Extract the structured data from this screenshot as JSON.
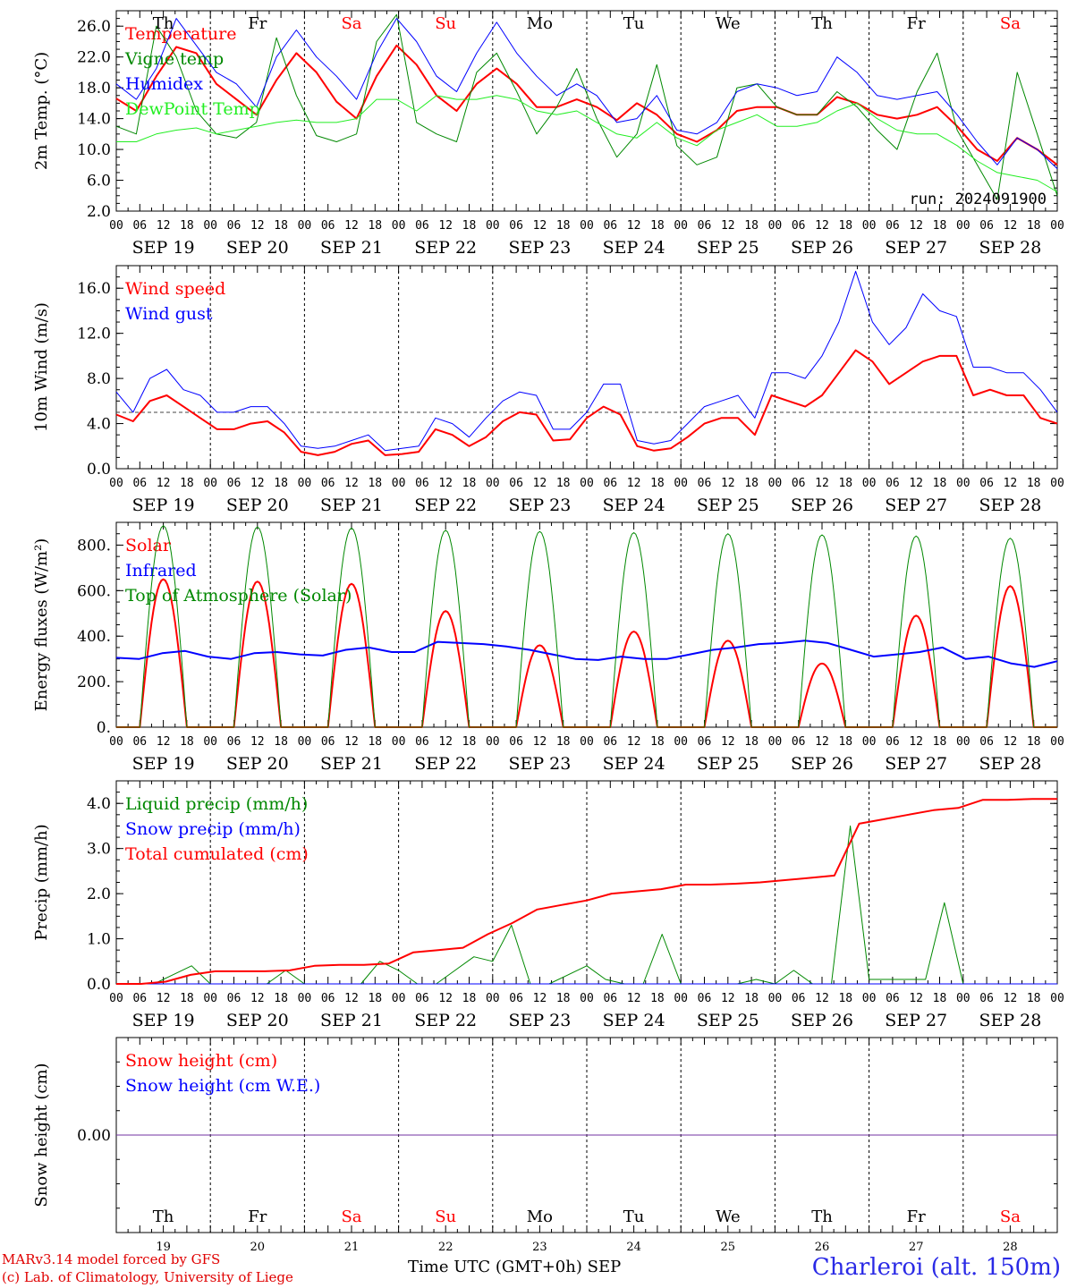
{
  "days": [
    {
      "abbr": "Th",
      "date": "19",
      "weekend": false
    },
    {
      "abbr": "Fr",
      "date": "20",
      "weekend": false
    },
    {
      "abbr": "Sa",
      "date": "21",
      "weekend": true
    },
    {
      "abbr": "Su",
      "date": "22",
      "weekend": true
    },
    {
      "abbr": "Mo",
      "date": "23",
      "weekend": false
    },
    {
      "abbr": "Tu",
      "date": "24",
      "weekend": false
    },
    {
      "abbr": "We",
      "date": "25",
      "weekend": false
    },
    {
      "abbr": "Th",
      "date": "26",
      "weekend": false
    },
    {
      "abbr": "Fr",
      "date": "27",
      "weekend": false
    },
    {
      "abbr": "Sa",
      "date": "28",
      "weekend": true
    }
  ],
  "month": "SEP",
  "hour_ticks": [
    "00",
    "06",
    "12",
    "18"
  ],
  "footer": {
    "model": "MARv3.14 model forced by GFS",
    "lab": "(c) Lab. of Climatology, University of Liege",
    "time_axis": "Time UTC (GMT+0h)",
    "month_label": "SEP",
    "station": "Charleroi (alt. 150m)"
  },
  "colors": {
    "red": "#ff0000",
    "green": "#008800",
    "blue": "#0000ff",
    "lightgreen": "#22ee22",
    "purple": "#7030a0",
    "weekend": "#ff0000"
  },
  "chart_data": [
    {
      "type": "line",
      "ylabel": "2m Temp. (°C)",
      "ylim": [
        2,
        28
      ],
      "yticks": [
        2.0,
        6.0,
        10.0,
        14.0,
        18.0,
        22.0,
        26.0
      ],
      "tick_decimals": 1,
      "run_label": "run: 2024091900",
      "x_hours_step": 6,
      "series": [
        {
          "name": "Temperature",
          "color": "#ff0000",
          "width": 2,
          "values": [
            16.6,
            15.0,
            19.5,
            23.3,
            22.5,
            18.5,
            16.5,
            14.5,
            19.0,
            22.5,
            20.0,
            16.2,
            14.0,
            19.5,
            23.5,
            21.0,
            17.0,
            15.0,
            18.5,
            20.5,
            18.5,
            15.5,
            15.5,
            16.5,
            15.5,
            13.8,
            16.0,
            14.5,
            12.0,
            11.0,
            12.5,
            15.0,
            15.5,
            15.5,
            14.5,
            14.5,
            16.8,
            16.0,
            14.5,
            14.0,
            14.5,
            15.5,
            13.0,
            10.0,
            8.5,
            11.5,
            10.0,
            8.0
          ]
        },
        {
          "name": "Vigne temp",
          "color": "#008800",
          "width": 1,
          "values": [
            13.0,
            12.0,
            26.0,
            22.0,
            15.0,
            12.0,
            11.5,
            13.5,
            24.5,
            17.0,
            11.8,
            11.0,
            12.0,
            24.0,
            27.5,
            13.5,
            12.0,
            11.0,
            20.0,
            22.5,
            17.5,
            12.0,
            15.5,
            20.5,
            14.0,
            9.0,
            12.0,
            21.0,
            10.5,
            8.0,
            9.0,
            18.0,
            18.5,
            15.5,
            14.5,
            14.5,
            17.5,
            15.5,
            12.5,
            10.0,
            17.5,
            22.5,
            12.5,
            8.0,
            3.5,
            20.0,
            12.0,
            4.0
          ]
        },
        {
          "name": "Humidex",
          "color": "#0000ff",
          "width": 1,
          "values": [
            18.5,
            16.5,
            20.5,
            27.0,
            23.5,
            20.0,
            18.5,
            15.5,
            22.0,
            25.5,
            22.0,
            19.5,
            16.5,
            22.5,
            27.0,
            24.0,
            19.5,
            17.5,
            22.5,
            26.5,
            22.5,
            19.5,
            17.0,
            18.5,
            17.0,
            13.5,
            14.0,
            17.0,
            12.5,
            12.0,
            13.5,
            17.5,
            18.5,
            18.0,
            17.0,
            17.5,
            22.0,
            20.0,
            17.0,
            16.5,
            17.0,
            17.5,
            14.5,
            11.0,
            8.0,
            11.5,
            10.0,
            7.5
          ]
        },
        {
          "name": "DewPoint Temp",
          "color": "#22ee22",
          "width": 1,
          "values": [
            11.0,
            11.0,
            12.0,
            12.5,
            12.8,
            12.0,
            12.5,
            13.0,
            13.5,
            13.8,
            13.5,
            13.5,
            14.0,
            16.5,
            16.5,
            15.0,
            17.0,
            16.5,
            16.5,
            17.0,
            16.5,
            15.0,
            14.5,
            15.0,
            13.5,
            12.0,
            11.5,
            13.5,
            11.5,
            10.5,
            12.5,
            13.5,
            14.5,
            13.0,
            13.0,
            13.5,
            15.0,
            16.0,
            14.0,
            12.5,
            12.0,
            12.0,
            10.5,
            8.5,
            7.0,
            6.5,
            6.0,
            4.5
          ]
        }
      ],
      "day_labels_on_top": true
    },
    {
      "type": "line",
      "ylabel": "10m Wind (m/s)",
      "ylim": [
        0,
        18
      ],
      "yticks": [
        0.0,
        4.0,
        8.0,
        12.0,
        16.0
      ],
      "tick_decimals": 1,
      "reference_line": 5.0,
      "x_hours_step": 6,
      "series": [
        {
          "name": "Wind speed",
          "color": "#ff0000",
          "width": 2,
          "values": [
            4.8,
            4.2,
            6.0,
            6.5,
            5.5,
            4.5,
            3.5,
            3.5,
            4.0,
            4.2,
            3.2,
            1.5,
            1.2,
            1.5,
            2.2,
            2.5,
            1.2,
            1.3,
            1.5,
            3.5,
            3.0,
            2.0,
            2.8,
            4.2,
            5.0,
            4.8,
            2.5,
            2.6,
            4.5,
            5.5,
            4.8,
            2.0,
            1.6,
            1.8,
            2.8,
            4.0,
            4.5,
            4.5,
            3.0,
            6.5,
            6.0,
            5.5,
            6.5,
            8.5,
            10.5,
            9.5,
            7.5,
            8.5,
            9.5,
            10.0,
            10.0,
            6.5,
            7.0,
            6.5,
            6.5,
            4.5,
            4.0
          ]
        },
        {
          "name": "Wind gust",
          "color": "#0000ff",
          "width": 1,
          "values": [
            6.8,
            5.0,
            8.0,
            8.8,
            7.0,
            6.5,
            5.0,
            5.0,
            5.5,
            5.5,
            4.0,
            2.0,
            1.8,
            2.0,
            2.5,
            3.0,
            1.6,
            1.8,
            2.0,
            4.5,
            4.0,
            2.8,
            4.5,
            6.0,
            6.8,
            6.5,
            3.5,
            3.5,
            5.0,
            7.5,
            7.5,
            2.5,
            2.2,
            2.5,
            4.0,
            5.5,
            6.0,
            6.5,
            4.5,
            8.5,
            8.5,
            8.0,
            10.0,
            13.0,
            17.5,
            13.0,
            11.0,
            12.5,
            15.5,
            14.0,
            13.5,
            9.0,
            9.0,
            8.5,
            8.5,
            7.0,
            5.0
          ]
        }
      ],
      "day_labels_on_top": false
    },
    {
      "type": "line",
      "ylabel": "Energy fluxes (W/m²)",
      "ylim": [
        0,
        900
      ],
      "yticks": [
        0,
        200,
        400,
        600,
        800
      ],
      "tick_labels": [
        "0.",
        "200.",
        "400.",
        "600.",
        "800."
      ],
      "x_hours_step": 6,
      "series": [
        {
          "name": "Solar",
          "color": "#ff0000",
          "width": 2,
          "kind": "diurnal",
          "peaks": [
            650,
            640,
            630,
            510,
            360,
            420,
            380,
            280,
            490,
            620
          ]
        },
        {
          "name": "Infrared",
          "color": "#0000ff",
          "width": 2,
          "values": [
            305,
            300,
            325,
            335,
            310,
            300,
            325,
            330,
            320,
            315,
            340,
            350,
            330,
            330,
            375,
            370,
            365,
            355,
            340,
            320,
            300,
            295,
            310,
            300,
            300,
            320,
            340,
            350,
            365,
            370,
            380,
            370,
            340,
            310,
            320,
            330,
            350,
            300,
            310,
            280,
            265,
            290
          ]
        },
        {
          "name": "Top of Atmosphere (Solar)",
          "color": "#008800",
          "width": 1,
          "kind": "diurnal",
          "peaks": [
            885,
            880,
            875,
            865,
            860,
            855,
            850,
            845,
            840,
            830
          ]
        }
      ],
      "day_labels_on_top": false
    },
    {
      "type": "line",
      "ylabel": "Precip (mm/h)",
      "ylim": [
        0,
        4.5
      ],
      "yticks": [
        0.0,
        1.0,
        2.0,
        3.0,
        4.0
      ],
      "tick_decimals": 1,
      "x_hours_step": 6,
      "series": [
        {
          "name": "Liquid precip (mm/h)",
          "color": "#008800",
          "width": 1,
          "values": [
            0,
            0,
            0,
            0.2,
            0.4,
            0,
            0,
            0,
            0,
            0.3,
            0,
            0,
            0,
            0,
            0.5,
            0.3,
            0,
            0,
            0.3,
            0.6,
            0.5,
            1.3,
            0,
            0,
            0.2,
            0.4,
            0.1,
            0,
            0,
            1.1,
            0,
            0,
            0,
            0,
            0.1,
            0,
            0.3,
            0,
            0,
            3.5,
            0.1,
            0.1,
            0.1,
            0.1,
            1.8,
            0,
            0,
            0,
            0,
            0,
            0
          ]
        },
        {
          "name": "Snow precip (mm/h)",
          "color": "#0000ff",
          "width": 1,
          "values": [
            0,
            0
          ]
        },
        {
          "name": "Total cumulated (cm)",
          "color": "#ff0000",
          "width": 2,
          "values": [
            0,
            0,
            0.05,
            0.2,
            0.28,
            0.28,
            0.28,
            0.3,
            0.4,
            0.42,
            0.42,
            0.45,
            0.7,
            0.75,
            0.8,
            1.1,
            1.35,
            1.65,
            1.75,
            1.85,
            2.0,
            2.05,
            2.1,
            2.2,
            2.2,
            2.22,
            2.25,
            2.3,
            2.35,
            2.4,
            3.55,
            3.65,
            3.75,
            3.85,
            3.9,
            4.08,
            4.08,
            4.1,
            4.1
          ]
        }
      ],
      "day_labels_on_top": false
    },
    {
      "type": "line",
      "ylabel": "Snow height (cm)",
      "ylim": [
        -1,
        1
      ],
      "yticks": [
        0.0
      ],
      "tick_decimals": 2,
      "x_hours_step": 6,
      "series": [
        {
          "name": "Snow height (cm)",
          "color": "#ff0000",
          "width": 1,
          "values": [
            0,
            0
          ]
        },
        {
          "name": "Snow height (cm W.E.)",
          "color": "#0000ff",
          "width": 1,
          "values": [
            0,
            0
          ]
        }
      ],
      "day_labels_on_top": false,
      "bottom_day_names": true
    }
  ]
}
